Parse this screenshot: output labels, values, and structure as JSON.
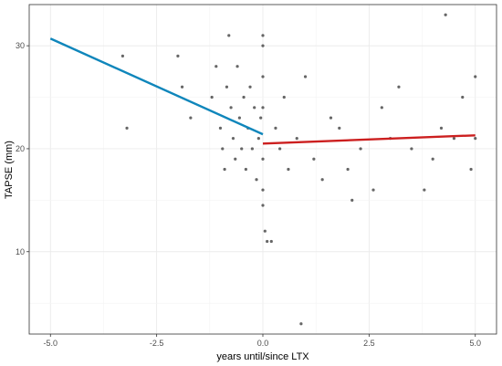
{
  "chart_data": {
    "type": "scatter",
    "title": "",
    "xlabel": "years until/since LTX",
    "ylabel": "TAPSE (mm)",
    "xlim": [
      -5.5,
      5.5
    ],
    "ylim": [
      2,
      34
    ],
    "x_ticks": [
      -5.0,
      -2.5,
      0.0,
      2.5,
      5.0
    ],
    "x_tick_labels": [
      "-5.0",
      "-2.5",
      "0.0",
      "2.5",
      "5.0"
    ],
    "y_ticks": [
      10,
      20,
      30
    ],
    "y_tick_labels": [
      "10",
      "20",
      "30"
    ],
    "grid": true,
    "legend": "none",
    "point_color": "#333333",
    "points": [
      [
        -3.3,
        29
      ],
      [
        -3.2,
        22
      ],
      [
        -2.0,
        29
      ],
      [
        -1.9,
        26
      ],
      [
        -1.7,
        23
      ],
      [
        -1.2,
        25
      ],
      [
        -1.1,
        28
      ],
      [
        -1.0,
        22
      ],
      [
        -0.95,
        20
      ],
      [
        -0.9,
        18
      ],
      [
        -0.85,
        26
      ],
      [
        -0.8,
        31
      ],
      [
        -0.75,
        24
      ],
      [
        -0.7,
        21
      ],
      [
        -0.65,
        19
      ],
      [
        -0.6,
        28
      ],
      [
        -0.55,
        23
      ],
      [
        -0.5,
        20
      ],
      [
        -0.45,
        25
      ],
      [
        -0.4,
        18
      ],
      [
        -0.35,
        22
      ],
      [
        -0.3,
        26
      ],
      [
        -0.25,
        20
      ],
      [
        -0.2,
        24
      ],
      [
        -0.15,
        17
      ],
      [
        -0.1,
        21
      ],
      [
        -0.05,
        23
      ],
      [
        0.0,
        31
      ],
      [
        0.0,
        30
      ],
      [
        0.0,
        27
      ],
      [
        0.0,
        24
      ],
      [
        0.0,
        19
      ],
      [
        0.0,
        16
      ],
      [
        0.0,
        14.5
      ],
      [
        0.05,
        12
      ],
      [
        0.1,
        11
      ],
      [
        0.2,
        11
      ],
      [
        0.3,
        22
      ],
      [
        0.4,
        20
      ],
      [
        0.5,
        25
      ],
      [
        0.6,
        18
      ],
      [
        0.8,
        21
      ],
      [
        1.0,
        27
      ],
      [
        1.2,
        19
      ],
      [
        1.4,
        17
      ],
      [
        1.6,
        23
      ],
      [
        1.8,
        22
      ],
      [
        2.0,
        18
      ],
      [
        2.1,
        15
      ],
      [
        2.3,
        20
      ],
      [
        2.6,
        16
      ],
      [
        2.8,
        24
      ],
      [
        3.0,
        21
      ],
      [
        3.2,
        26
      ],
      [
        3.5,
        20
      ],
      [
        3.8,
        16
      ],
      [
        4.0,
        19
      ],
      [
        4.2,
        22
      ],
      [
        4.3,
        33
      ],
      [
        4.5,
        21
      ],
      [
        4.7,
        25
      ],
      [
        4.9,
        18
      ],
      [
        5.0,
        27
      ],
      [
        5.0,
        21
      ],
      [
        0.9,
        3
      ]
    ],
    "series": [
      {
        "color": "#0f86bb",
        "x": [
          -5.0,
          0.0
        ],
        "y": [
          30.7,
          21.4
        ]
      },
      {
        "color": "#cc1f1f",
        "x": [
          0.0,
          5.0
        ],
        "y": [
          20.5,
          21.3
        ]
      }
    ]
  }
}
